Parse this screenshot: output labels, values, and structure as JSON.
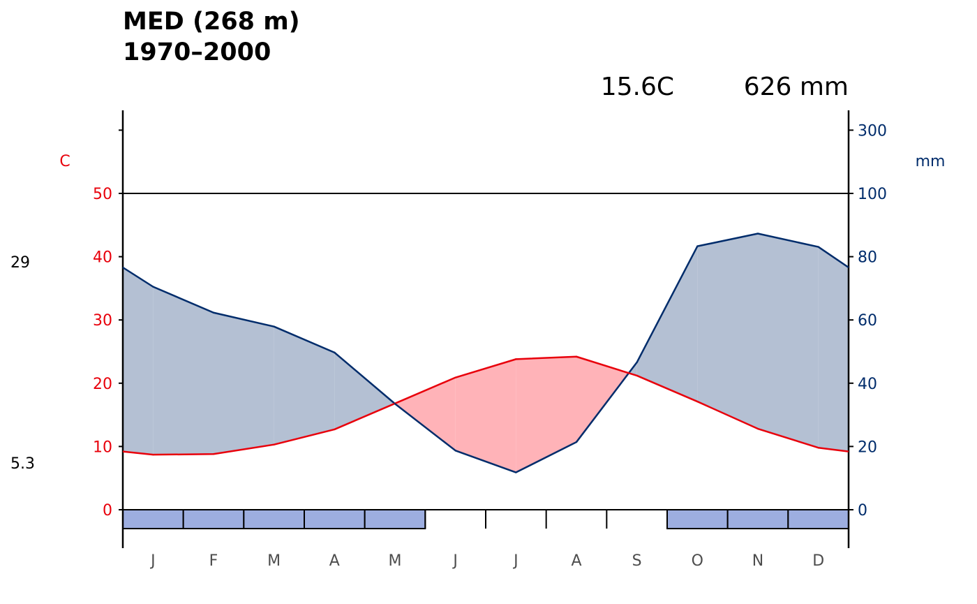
{
  "title": {
    "station": "MED (268 m)",
    "period": "1970–2000"
  },
  "stats": {
    "mean_temp": "15.6C",
    "annual_precip": "626 mm"
  },
  "extremes": {
    "upper": "29",
    "lower": "5.3"
  },
  "colors": {
    "temperature": "#e8000b",
    "precipitation": "#002c6b",
    "humid_fill": "#b4c0d3",
    "dry_fill": "#ffb3b8",
    "frost_box": "#9daee0",
    "axis": "#000000",
    "month_label": "#4d4d4d"
  },
  "chart_data": {
    "type": "line",
    "categories": [
      "J",
      "F",
      "M",
      "A",
      "M",
      "J",
      "J",
      "A",
      "S",
      "O",
      "N",
      "D"
    ],
    "series": [
      {
        "values": [
          8.7,
          8.8,
          10.3,
          12.7,
          16.8,
          20.9,
          23.8,
          24.2,
          21.2,
          17.1,
          12.8,
          9.8
        ]
      },
      {
        "values": [
          70.5,
          62.3,
          57.9,
          49.7,
          33.5,
          18.7,
          11.8,
          21.4,
          46.6,
          83.3,
          87.3,
          83.1
        ]
      }
    ],
    "left_axis": {
      "label": "C",
      "ticks": [
        0,
        10,
        20,
        30,
        40,
        50
      ],
      "ylim": [
        -6,
        60
      ]
    },
    "right_axis": {
      "label": "mm",
      "ticks": [
        0,
        20,
        40,
        60,
        80,
        100,
        300
      ]
    },
    "left_top_minor_tick": 60,
    "frost_months": [
      true,
      true,
      true,
      true,
      true,
      false,
      false,
      false,
      false,
      true,
      true,
      true
    ],
    "edge_values": {
      "temp_start": 9.2,
      "temp_end": 9.2,
      "precip_start": 76.6,
      "precip_end": 76.6
    },
    "grid": false,
    "reference_line": 50
  }
}
